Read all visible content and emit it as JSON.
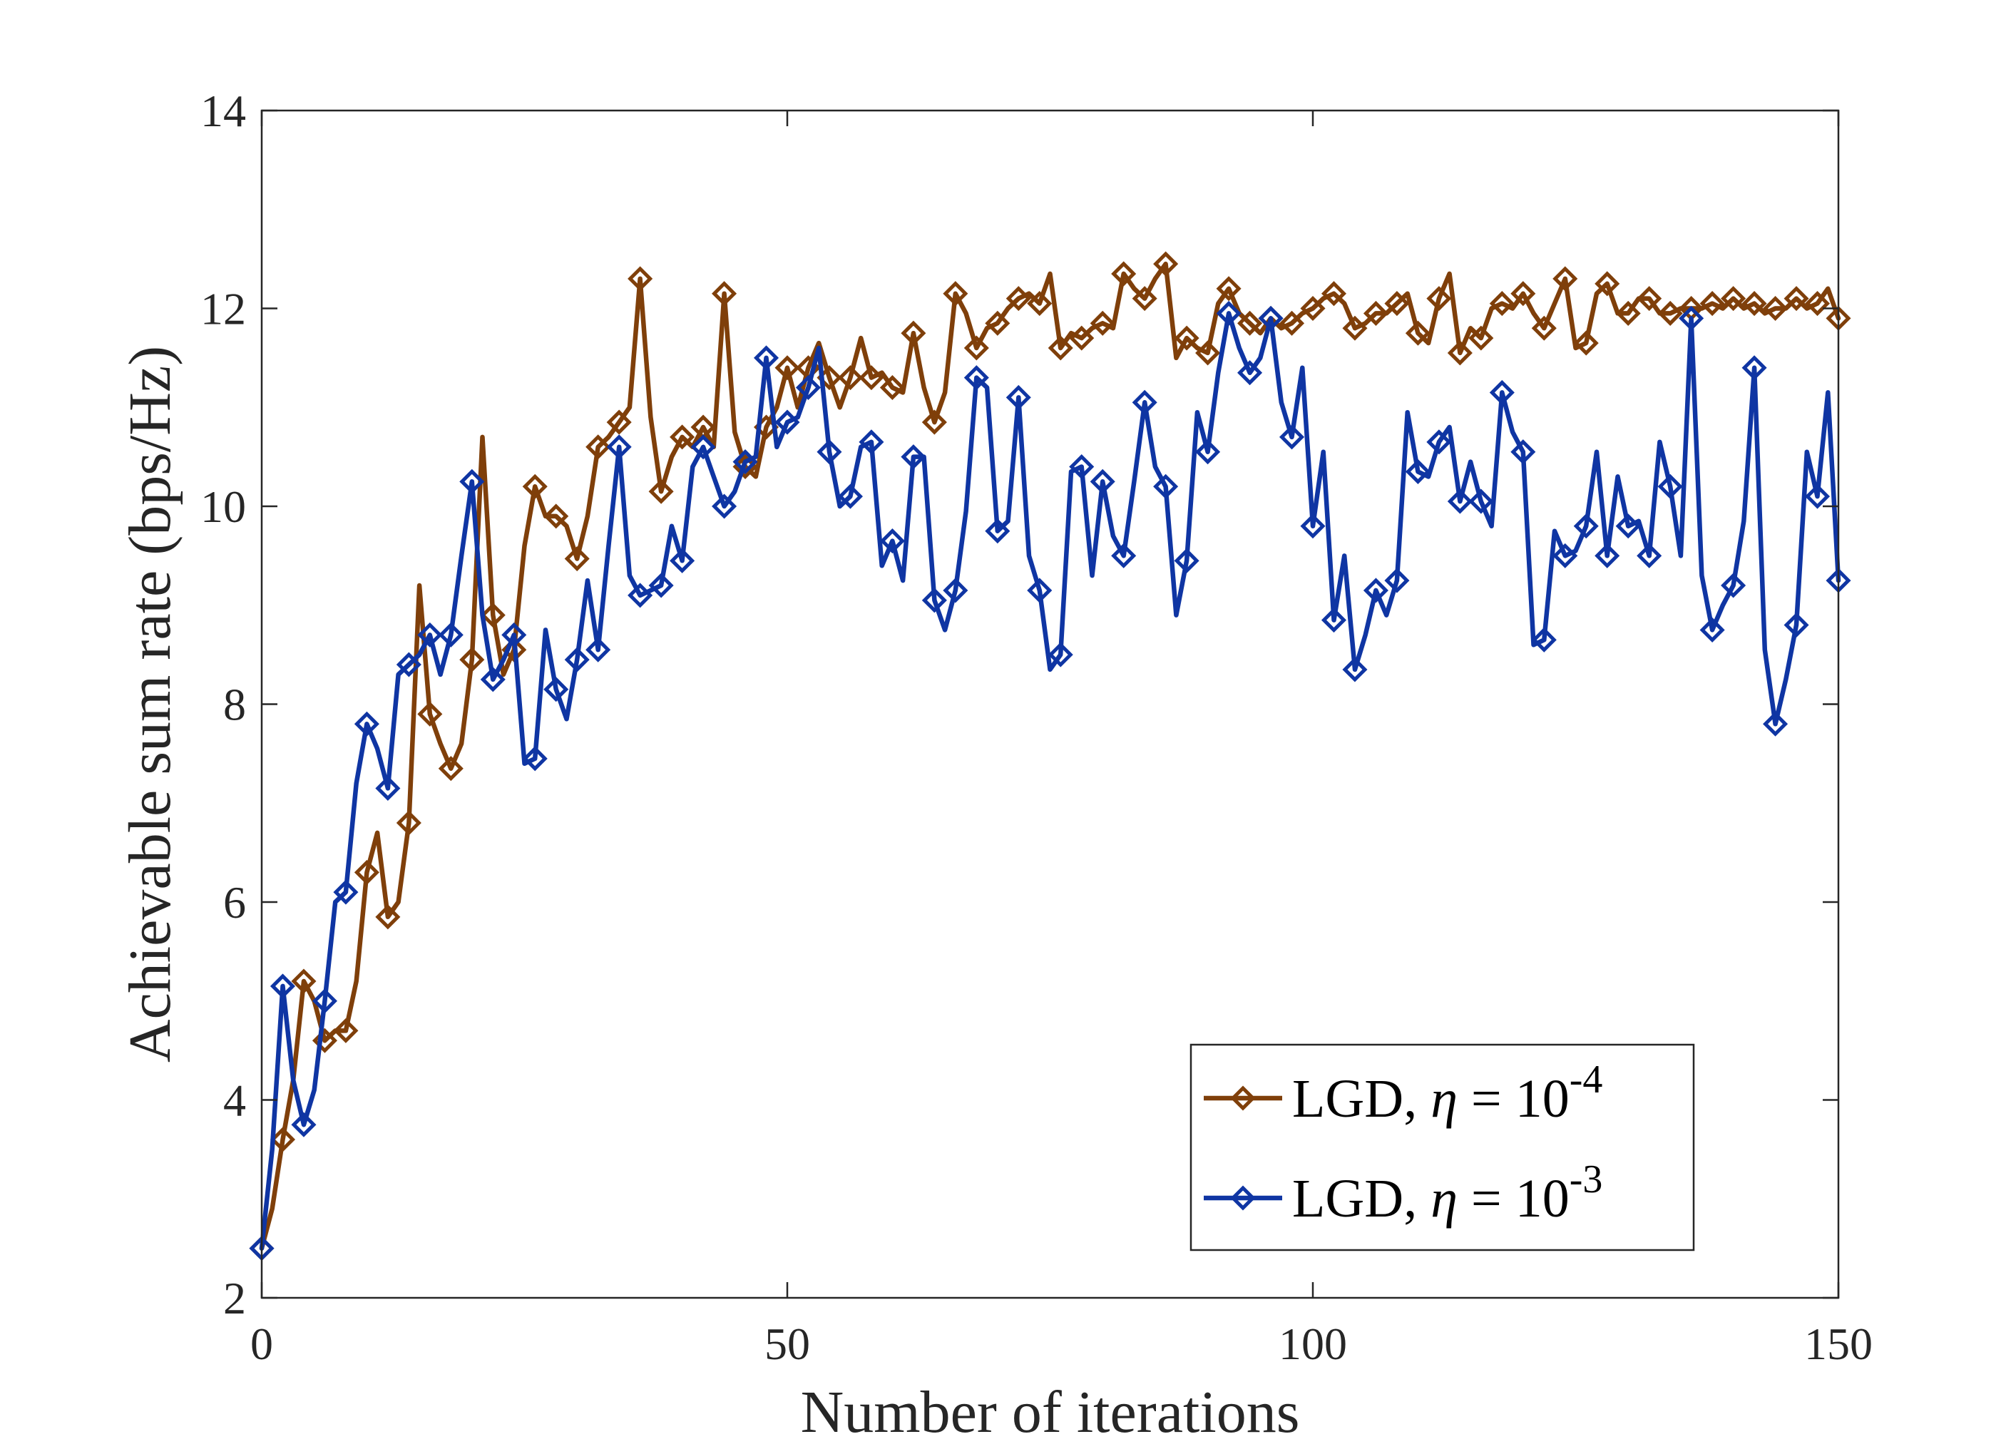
{
  "chart_data": {
    "type": "line",
    "title": "",
    "xlabel": "Number of iterations",
    "ylabel": "Achievable sum rate (bps/Hz)",
    "xlim": [
      0,
      150
    ],
    "ylim": [
      2,
      14
    ],
    "xticks": [
      0,
      50,
      100,
      150
    ],
    "yticks": [
      2,
      4,
      6,
      8,
      10,
      12,
      14
    ],
    "xtick_labels": [
      "0",
      "50",
      "100",
      "150"
    ],
    "ytick_labels": [
      "2",
      "4",
      "6",
      "8",
      "10",
      "12",
      "14"
    ],
    "grid": false,
    "legend_position": "bottom-right",
    "marker": "diamond",
    "marker_every": 2,
    "series": [
      {
        "name": "LGD, η = 10^-4",
        "legend_prefix": "LGD, ",
        "legend_symbol": "η",
        "legend_mid": " = 10",
        "legend_exp": "-4",
        "color": "#7f3f0a",
        "y": [
          2.5,
          2.9,
          3.6,
          4.2,
          5.2,
          5.0,
          4.6,
          4.7,
          4.7,
          5.2,
          6.3,
          6.7,
          5.85,
          6.0,
          6.8,
          9.2,
          7.9,
          7.6,
          7.35,
          7.6,
          8.45,
          10.7,
          8.9,
          8.3,
          8.55,
          9.6,
          10.2,
          9.9,
          9.9,
          9.8,
          9.47,
          9.9,
          10.6,
          10.7,
          10.85,
          11.0,
          12.3,
          10.9,
          10.15,
          10.5,
          10.7,
          10.6,
          10.8,
          10.6,
          12.15,
          10.75,
          10.4,
          10.3,
          10.8,
          11.0,
          11.4,
          11.0,
          11.4,
          11.65,
          11.3,
          11.0,
          11.3,
          11.7,
          11.3,
          11.35,
          11.2,
          11.15,
          11.75,
          11.2,
          10.85,
          11.15,
          12.15,
          11.95,
          11.6,
          11.8,
          11.85,
          12.0,
          12.1,
          12.15,
          12.05,
          12.35,
          11.6,
          11.75,
          11.7,
          11.8,
          11.85,
          11.8,
          12.35,
          12.2,
          12.1,
          12.3,
          12.45,
          11.5,
          11.7,
          11.6,
          11.55,
          12.05,
          12.2,
          11.95,
          11.85,
          11.75,
          11.9,
          11.8,
          11.85,
          11.95,
          12.0,
          12.1,
          12.15,
          12.05,
          11.8,
          11.85,
          11.95,
          11.95,
          12.05,
          12.15,
          11.75,
          11.65,
          12.1,
          12.35,
          11.55,
          11.8,
          11.7,
          12.0,
          12.05,
          12.0,
          12.15,
          11.95,
          11.8,
          12.05,
          12.3,
          11.6,
          11.65,
          12.15,
          12.25,
          11.95,
          11.95,
          12.1,
          12.1,
          11.95,
          11.95,
          12.0,
          12.0,
          12.0,
          12.05,
          12.0,
          12.1,
          12.0,
          12.05,
          11.95,
          12.0,
          12.0,
          12.1,
          12.0,
          12.05,
          12.2,
          11.9
        ]
      },
      {
        "name": "LGD, η = 10^-3",
        "legend_prefix": "LGD, ",
        "legend_symbol": "η",
        "legend_mid": " = 10",
        "legend_exp": "-3",
        "color": "#0f35a3",
        "y": [
          2.5,
          3.5,
          5.15,
          4.2,
          3.75,
          4.1,
          5.0,
          6.0,
          6.1,
          7.2,
          7.8,
          7.55,
          7.15,
          8.3,
          8.4,
          8.5,
          8.7,
          8.3,
          8.7,
          9.5,
          10.25,
          8.9,
          8.25,
          8.45,
          8.7,
          7.4,
          7.45,
          8.75,
          8.15,
          7.85,
          8.45,
          9.25,
          8.55,
          9.6,
          10.6,
          9.3,
          9.1,
          9.15,
          9.2,
          9.8,
          9.45,
          10.4,
          10.6,
          10.3,
          10.0,
          10.15,
          10.45,
          10.5,
          11.5,
          10.6,
          10.85,
          10.9,
          11.2,
          11.6,
          10.55,
          10.0,
          10.1,
          10.6,
          10.65,
          9.4,
          9.65,
          9.25,
          10.5,
          10.5,
          9.05,
          8.75,
          9.15,
          9.95,
          11.3,
          11.2,
          9.75,
          9.85,
          11.1,
          9.5,
          9.15,
          8.35,
          8.5,
          10.35,
          10.4,
          9.3,
          10.25,
          9.7,
          9.5,
          10.25,
          11.05,
          10.4,
          10.2,
          8.9,
          9.45,
          10.95,
          10.55,
          11.35,
          11.95,
          11.6,
          11.35,
          11.5,
          11.9,
          11.05,
          10.7,
          11.4,
          9.8,
          10.55,
          8.85,
          9.5,
          8.35,
          8.7,
          9.15,
          8.9,
          9.25,
          10.95,
          10.35,
          10.3,
          10.65,
          10.8,
          10.05,
          10.45,
          10.05,
          9.8,
          11.15,
          10.75,
          10.55,
          8.6,
          8.65,
          9.75,
          9.5,
          9.55,
          9.8,
          10.55,
          9.5,
          10.3,
          9.8,
          9.85,
          9.5,
          10.65,
          10.2,
          9.5,
          11.9,
          9.3,
          8.75,
          9.0,
          9.2,
          9.85,
          11.4,
          8.55,
          7.8,
          8.25,
          8.8,
          10.55,
          10.1,
          11.15,
          9.25
        ]
      }
    ]
  }
}
